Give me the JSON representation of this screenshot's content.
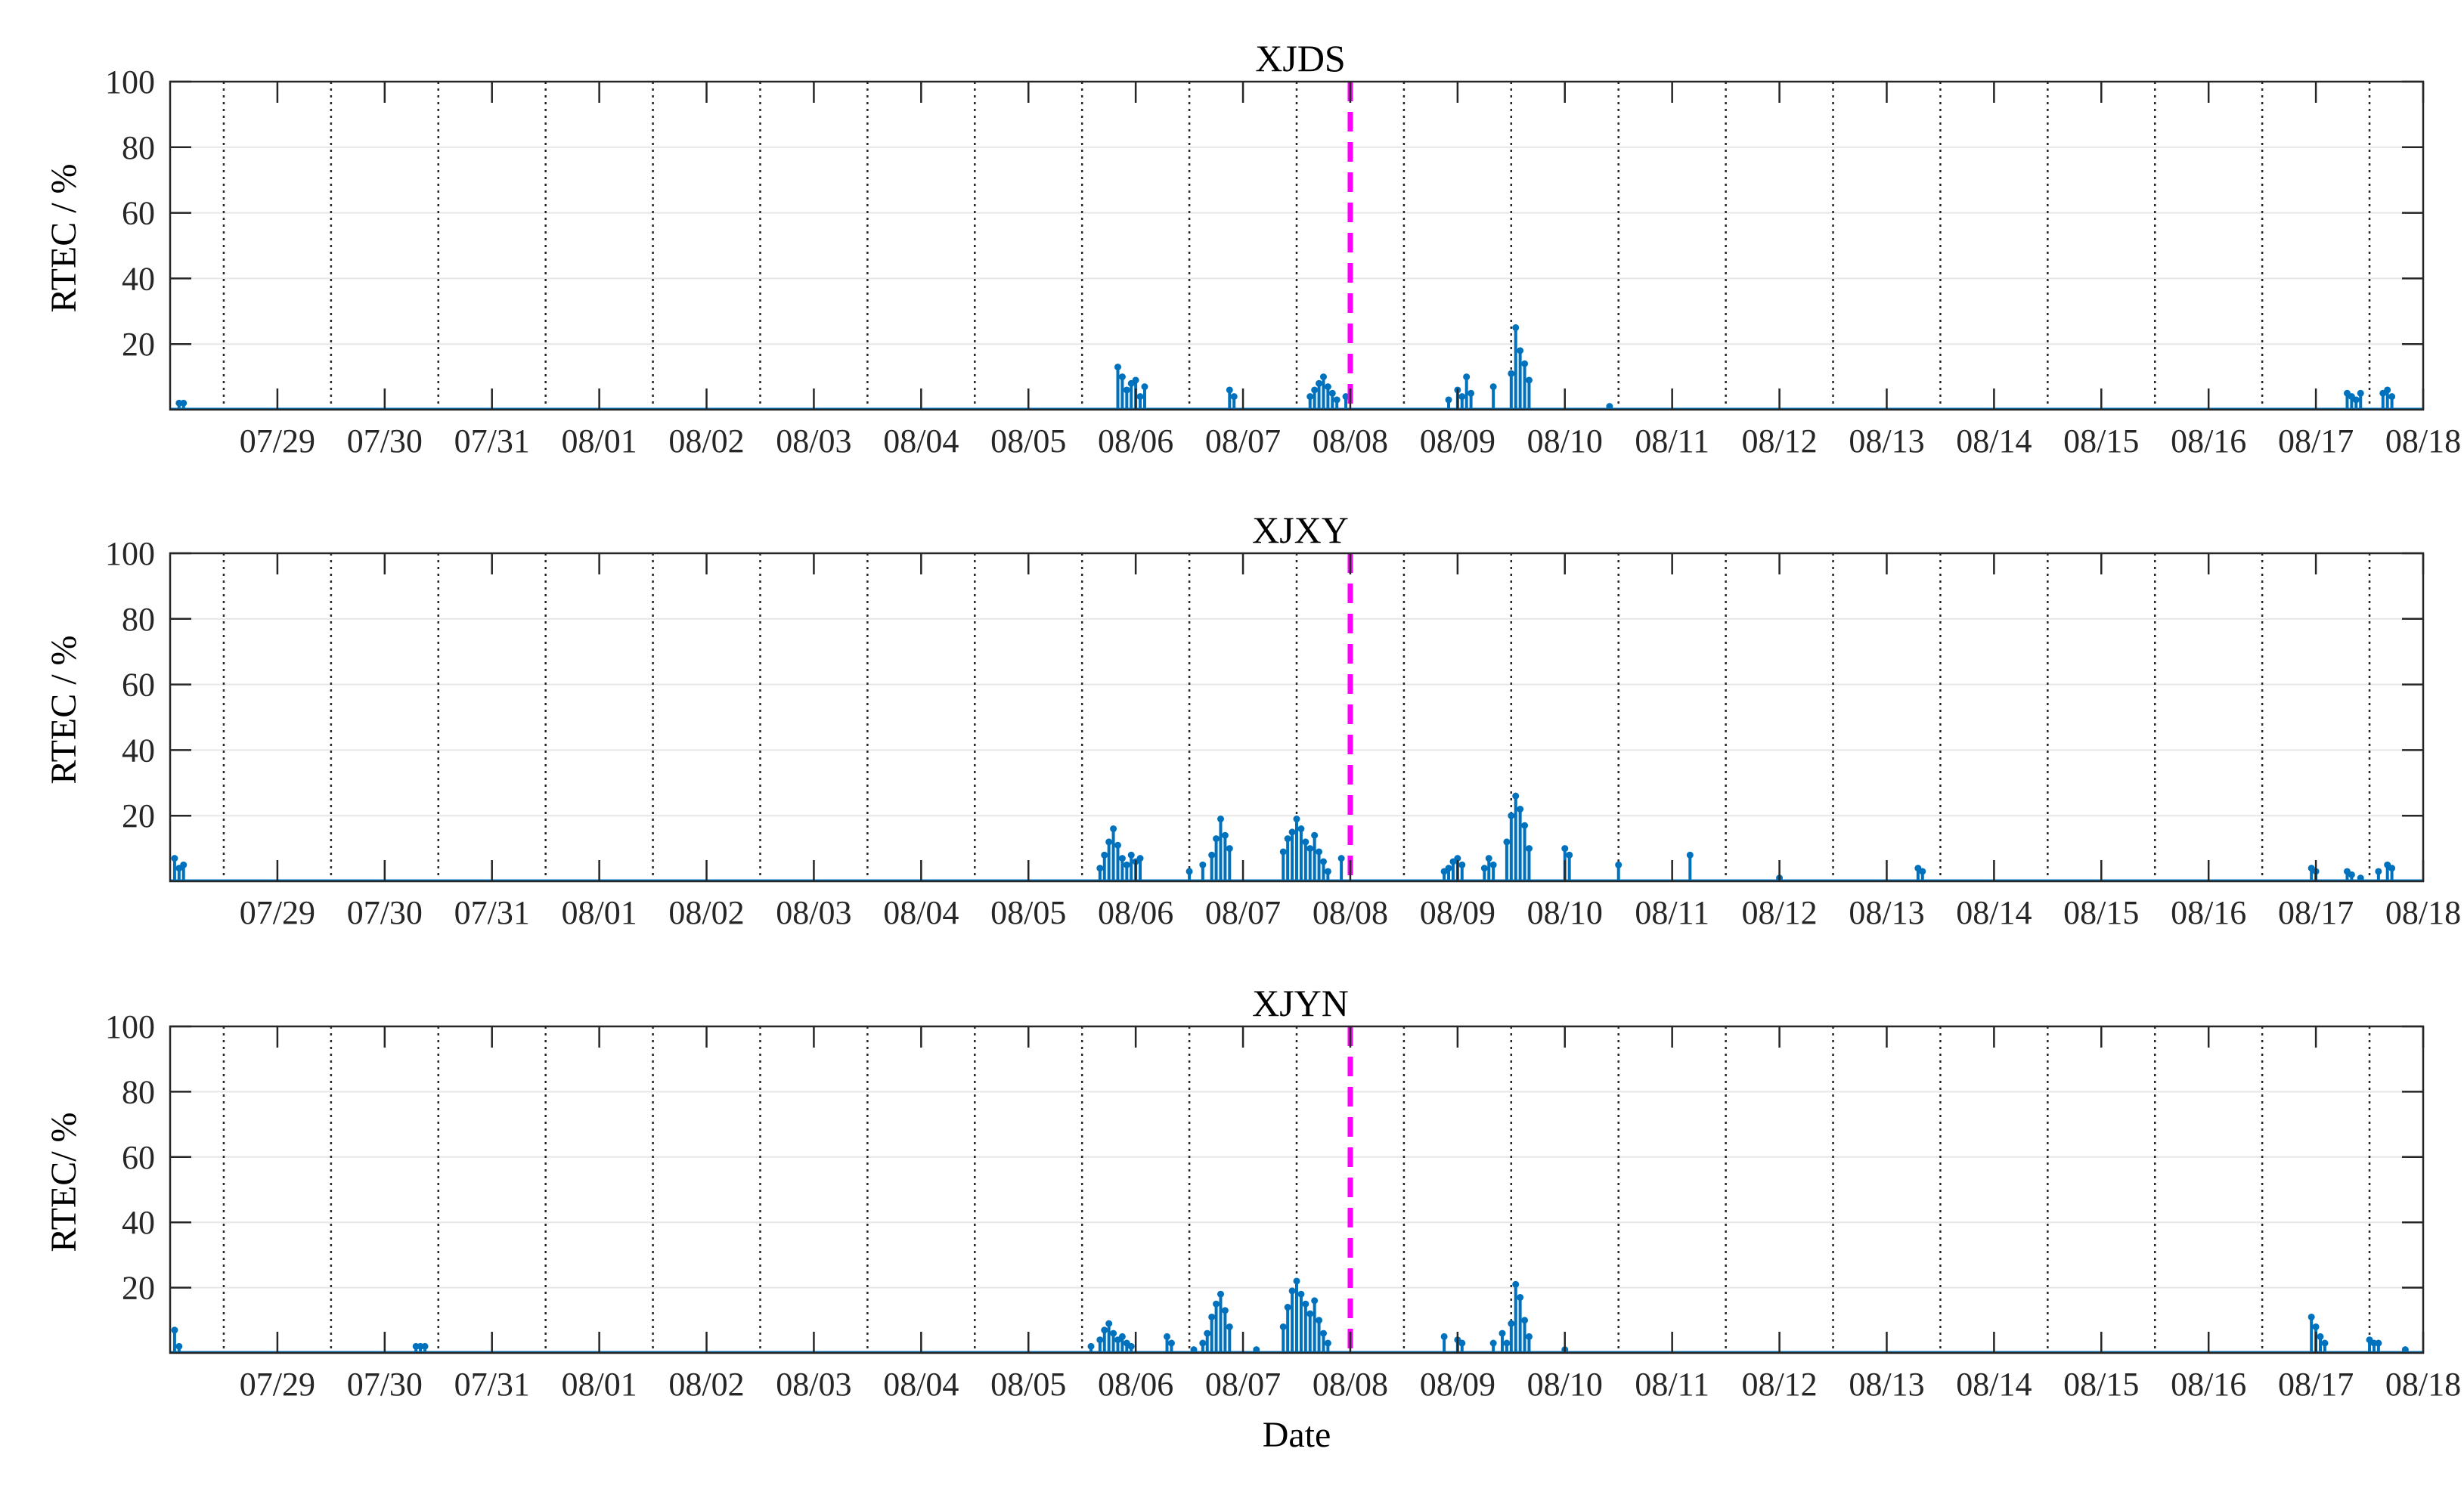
{
  "chart_data": [
    {
      "type": "stem",
      "title": "XJDS",
      "ylabel": "RTEC / %",
      "xlabel": "",
      "ylim": [
        0,
        100
      ],
      "yticks": [
        20,
        40,
        60,
        80,
        100
      ],
      "xlim": [
        "07/28 12:00",
        "08/18 12:00"
      ],
      "date_ticks": [
        "07/29",
        "07/30",
        "07/31",
        "08/01",
        "08/02",
        "08/03",
        "08/04",
        "08/05",
        "08/06",
        "08/07",
        "08/08",
        "08/09",
        "08/10",
        "08/11",
        "08/12",
        "08/13",
        "08/14",
        "08/15",
        "08/16",
        "08/17",
        "08/18"
      ],
      "day_boundaries": [
        "07/29",
        "07/30",
        "07/31",
        "08/01",
        "08/02",
        "08/03",
        "08/04",
        "08/05",
        "08/06",
        "08/07",
        "08/08",
        "08/09",
        "08/10",
        "08/11",
        "08/12",
        "08/13",
        "08/14",
        "08/15",
        "08/16",
        "08/17",
        "08/18"
      ],
      "grid": "horizontal gridlines; dotted vertical lines at day boundaries",
      "event_marker": {
        "date": "08/08 12:00",
        "color": "#ff00ff",
        "style": "dashed"
      },
      "series": [
        {
          "color": "#0072bd",
          "points": [
            [
              "07/28 14:00",
              2
            ],
            [
              "07/28 15:00",
              2
            ],
            [
              "08/06 08:00",
              13
            ],
            [
              "08/06 09:00",
              10
            ],
            [
              "08/06 10:00",
              6
            ],
            [
              "08/06 11:00",
              8
            ],
            [
              "08/06 12:00",
              9
            ],
            [
              "08/06 13:00",
              4
            ],
            [
              "08/06 14:00",
              7
            ],
            [
              "08/07 09:00",
              6
            ],
            [
              "08/07 10:00",
              4
            ],
            [
              "08/08 03:00",
              4
            ],
            [
              "08/08 04:00",
              6
            ],
            [
              "08/08 05:00",
              8
            ],
            [
              "08/08 06:00",
              10
            ],
            [
              "08/08 07:00",
              7
            ],
            [
              "08/08 08:00",
              5
            ],
            [
              "08/08 09:00",
              3
            ],
            [
              "08/08 11:00",
              4
            ],
            [
              "08/09 10:00",
              3
            ],
            [
              "08/09 12:00",
              6
            ],
            [
              "08/09 13:00",
              4
            ],
            [
              "08/09 14:00",
              10
            ],
            [
              "08/09 15:00",
              5
            ],
            [
              "08/09 20:00",
              7
            ],
            [
              "08/10 00:00",
              11
            ],
            [
              "08/10 01:00",
              25
            ],
            [
              "08/10 02:00",
              18
            ],
            [
              "08/10 03:00",
              14
            ],
            [
              "08/10 04:00",
              9
            ],
            [
              "08/10 22:00",
              1
            ],
            [
              "08/17 19:00",
              5
            ],
            [
              "08/17 20:00",
              4
            ],
            [
              "08/17 21:00",
              3
            ],
            [
              "08/17 22:00",
              5
            ],
            [
              "08/18 03:00",
              5
            ],
            [
              "08/18 04:00",
              6
            ],
            [
              "08/18 05:00",
              4
            ]
          ]
        }
      ]
    },
    {
      "type": "stem",
      "title": "XJXY",
      "ylabel": "RTEC / %",
      "xlabel": "",
      "ylim": [
        0,
        100
      ],
      "yticks": [
        20,
        40,
        60,
        80,
        100
      ],
      "xlim": [
        "07/28 12:00",
        "08/18 12:00"
      ],
      "date_ticks": [
        "07/29",
        "07/30",
        "07/31",
        "08/01",
        "08/02",
        "08/03",
        "08/04",
        "08/05",
        "08/06",
        "08/07",
        "08/08",
        "08/09",
        "08/10",
        "08/11",
        "08/12",
        "08/13",
        "08/14",
        "08/15",
        "08/16",
        "08/17",
        "08/18"
      ],
      "day_boundaries": [
        "07/29",
        "07/30",
        "07/31",
        "08/01",
        "08/02",
        "08/03",
        "08/04",
        "08/05",
        "08/06",
        "08/07",
        "08/08",
        "08/09",
        "08/10",
        "08/11",
        "08/12",
        "08/13",
        "08/14",
        "08/15",
        "08/16",
        "08/17",
        "08/18"
      ],
      "grid": "horizontal gridlines; dotted vertical lines at day boundaries",
      "event_marker": {
        "date": "08/08 12:00",
        "color": "#ff00ff",
        "style": "dashed"
      },
      "series": [
        {
          "color": "#0072bd",
          "points": [
            [
              "07/28 13:00",
              7
            ],
            [
              "07/28 14:00",
              4
            ],
            [
              "07/28 15:00",
              5
            ],
            [
              "08/06 04:00",
              4
            ],
            [
              "08/06 05:00",
              8
            ],
            [
              "08/06 06:00",
              12
            ],
            [
              "08/06 07:00",
              16
            ],
            [
              "08/06 08:00",
              11
            ],
            [
              "08/06 09:00",
              7
            ],
            [
              "08/06 10:00",
              5
            ],
            [
              "08/06 11:00",
              8
            ],
            [
              "08/06 12:00",
              6
            ],
            [
              "08/06 13:00",
              7
            ],
            [
              "08/07 00:00",
              3
            ],
            [
              "08/07 03:00",
              5
            ],
            [
              "08/07 05:00",
              8
            ],
            [
              "08/07 06:00",
              13
            ],
            [
              "08/07 07:00",
              19
            ],
            [
              "08/07 08:00",
              14
            ],
            [
              "08/07 09:00",
              10
            ],
            [
              "08/07 21:00",
              9
            ],
            [
              "08/07 22:00",
              13
            ],
            [
              "08/07 23:00",
              15
            ],
            [
              "08/08 00:00",
              19
            ],
            [
              "08/08 01:00",
              16
            ],
            [
              "08/08 02:00",
              12
            ],
            [
              "08/08 03:00",
              10
            ],
            [
              "08/08 04:00",
              14
            ],
            [
              "08/08 05:00",
              9
            ],
            [
              "08/08 06:00",
              6
            ],
            [
              "08/08 07:00",
              3
            ],
            [
              "08/08 10:00",
              7
            ],
            [
              "08/09 09:00",
              3
            ],
            [
              "08/09 10:00",
              4
            ],
            [
              "08/09 11:00",
              6
            ],
            [
              "08/09 12:00",
              7
            ],
            [
              "08/09 13:00",
              5
            ],
            [
              "08/09 18:00",
              4
            ],
            [
              "08/09 19:00",
              7
            ],
            [
              "08/09 20:00",
              5
            ],
            [
              "08/09 23:00",
              12
            ],
            [
              "08/10 00:00",
              20
            ],
            [
              "08/10 01:00",
              26
            ],
            [
              "08/10 02:00",
              22
            ],
            [
              "08/10 03:00",
              17
            ],
            [
              "08/10 04:00",
              10
            ],
            [
              "08/10 12:00",
              10
            ],
            [
              "08/10 13:00",
              8
            ],
            [
              "08/11 00:00",
              5
            ],
            [
              "08/11 16:00",
              8
            ],
            [
              "08/12 12:00",
              1
            ],
            [
              "08/13 19:00",
              4
            ],
            [
              "08/13 20:00",
              3
            ],
            [
              "08/17 11:00",
              4
            ],
            [
              "08/17 12:00",
              3
            ],
            [
              "08/17 19:00",
              3
            ],
            [
              "08/17 20:00",
              2
            ],
            [
              "08/17 22:00",
              1
            ],
            [
              "08/18 02:00",
              3
            ],
            [
              "08/18 04:00",
              5
            ],
            [
              "08/18 05:00",
              4
            ]
          ]
        }
      ]
    },
    {
      "type": "stem",
      "title": "XJYN",
      "ylabel": "RTEC/ %",
      "xlabel": "Date",
      "ylim": [
        0,
        100
      ],
      "yticks": [
        20,
        40,
        60,
        80,
        100
      ],
      "xlim": [
        "07/28 12:00",
        "08/18 12:00"
      ],
      "date_ticks": [
        "07/29",
        "07/30",
        "07/31",
        "08/01",
        "08/02",
        "08/03",
        "08/04",
        "08/05",
        "08/06",
        "08/07",
        "08/08",
        "08/09",
        "08/10",
        "08/11",
        "08/12",
        "08/13",
        "08/14",
        "08/15",
        "08/16",
        "08/17",
        "08/18"
      ],
      "day_boundaries": [
        "07/29",
        "07/30",
        "07/31",
        "08/01",
        "08/02",
        "08/03",
        "08/04",
        "08/05",
        "08/06",
        "08/07",
        "08/08",
        "08/09",
        "08/10",
        "08/11",
        "08/12",
        "08/13",
        "08/14",
        "08/15",
        "08/16",
        "08/17",
        "08/18"
      ],
      "grid": "horizontal gridlines; dotted vertical lines at day boundaries",
      "event_marker": {
        "date": "08/08 12:00",
        "color": "#ff00ff",
        "style": "dashed"
      },
      "series": [
        {
          "color": "#0072bd",
          "points": [
            [
              "07/28 13:00",
              7
            ],
            [
              "07/28 14:00",
              2
            ],
            [
              "07/30 19:00",
              2
            ],
            [
              "07/30 20:00",
              2
            ],
            [
              "07/30 21:00",
              2
            ],
            [
              "08/06 02:00",
              2
            ],
            [
              "08/06 04:00",
              4
            ],
            [
              "08/06 05:00",
              7
            ],
            [
              "08/06 06:00",
              9
            ],
            [
              "08/06 07:00",
              6
            ],
            [
              "08/06 08:00",
              4
            ],
            [
              "08/06 09:00",
              5
            ],
            [
              "08/06 10:00",
              3
            ],
            [
              "08/06 11:00",
              2
            ],
            [
              "08/06 19:00",
              5
            ],
            [
              "08/06 20:00",
              3
            ],
            [
              "08/07 01:00",
              1
            ],
            [
              "08/07 03:00",
              3
            ],
            [
              "08/07 04:00",
              6
            ],
            [
              "08/07 05:00",
              11
            ],
            [
              "08/07 06:00",
              15
            ],
            [
              "08/07 07:00",
              18
            ],
            [
              "08/07 08:00",
              13
            ],
            [
              "08/07 09:00",
              8
            ],
            [
              "08/07 15:00",
              1
            ],
            [
              "08/07 21:00",
              8
            ],
            [
              "08/07 22:00",
              14
            ],
            [
              "08/07 23:00",
              19
            ],
            [
              "08/08 00:00",
              22
            ],
            [
              "08/08 01:00",
              18
            ],
            [
              "08/08 02:00",
              15
            ],
            [
              "08/08 03:00",
              12
            ],
            [
              "08/08 04:00",
              16
            ],
            [
              "08/08 05:00",
              10
            ],
            [
              "08/08 06:00",
              6
            ],
            [
              "08/08 07:00",
              3
            ],
            [
              "08/09 09:00",
              5
            ],
            [
              "08/09 12:00",
              4
            ],
            [
              "08/09 13:00",
              3
            ],
            [
              "08/09 20:00",
              3
            ],
            [
              "08/09 22:00",
              6
            ],
            [
              "08/09 23:00",
              3
            ],
            [
              "08/10 00:00",
              9
            ],
            [
              "08/10 01:00",
              21
            ],
            [
              "08/10 02:00",
              17
            ],
            [
              "08/10 03:00",
              10
            ],
            [
              "08/10 04:00",
              5
            ],
            [
              "08/10 12:00",
              1
            ],
            [
              "08/17 11:00",
              11
            ],
            [
              "08/17 12:00",
              8
            ],
            [
              "08/17 13:00",
              5
            ],
            [
              "08/17 14:00",
              3
            ],
            [
              "08/18 00:00",
              4
            ],
            [
              "08/18 01:00",
              3
            ],
            [
              "08/18 02:00",
              3
            ],
            [
              "08/18 08:00",
              1
            ]
          ]
        }
      ]
    }
  ]
}
